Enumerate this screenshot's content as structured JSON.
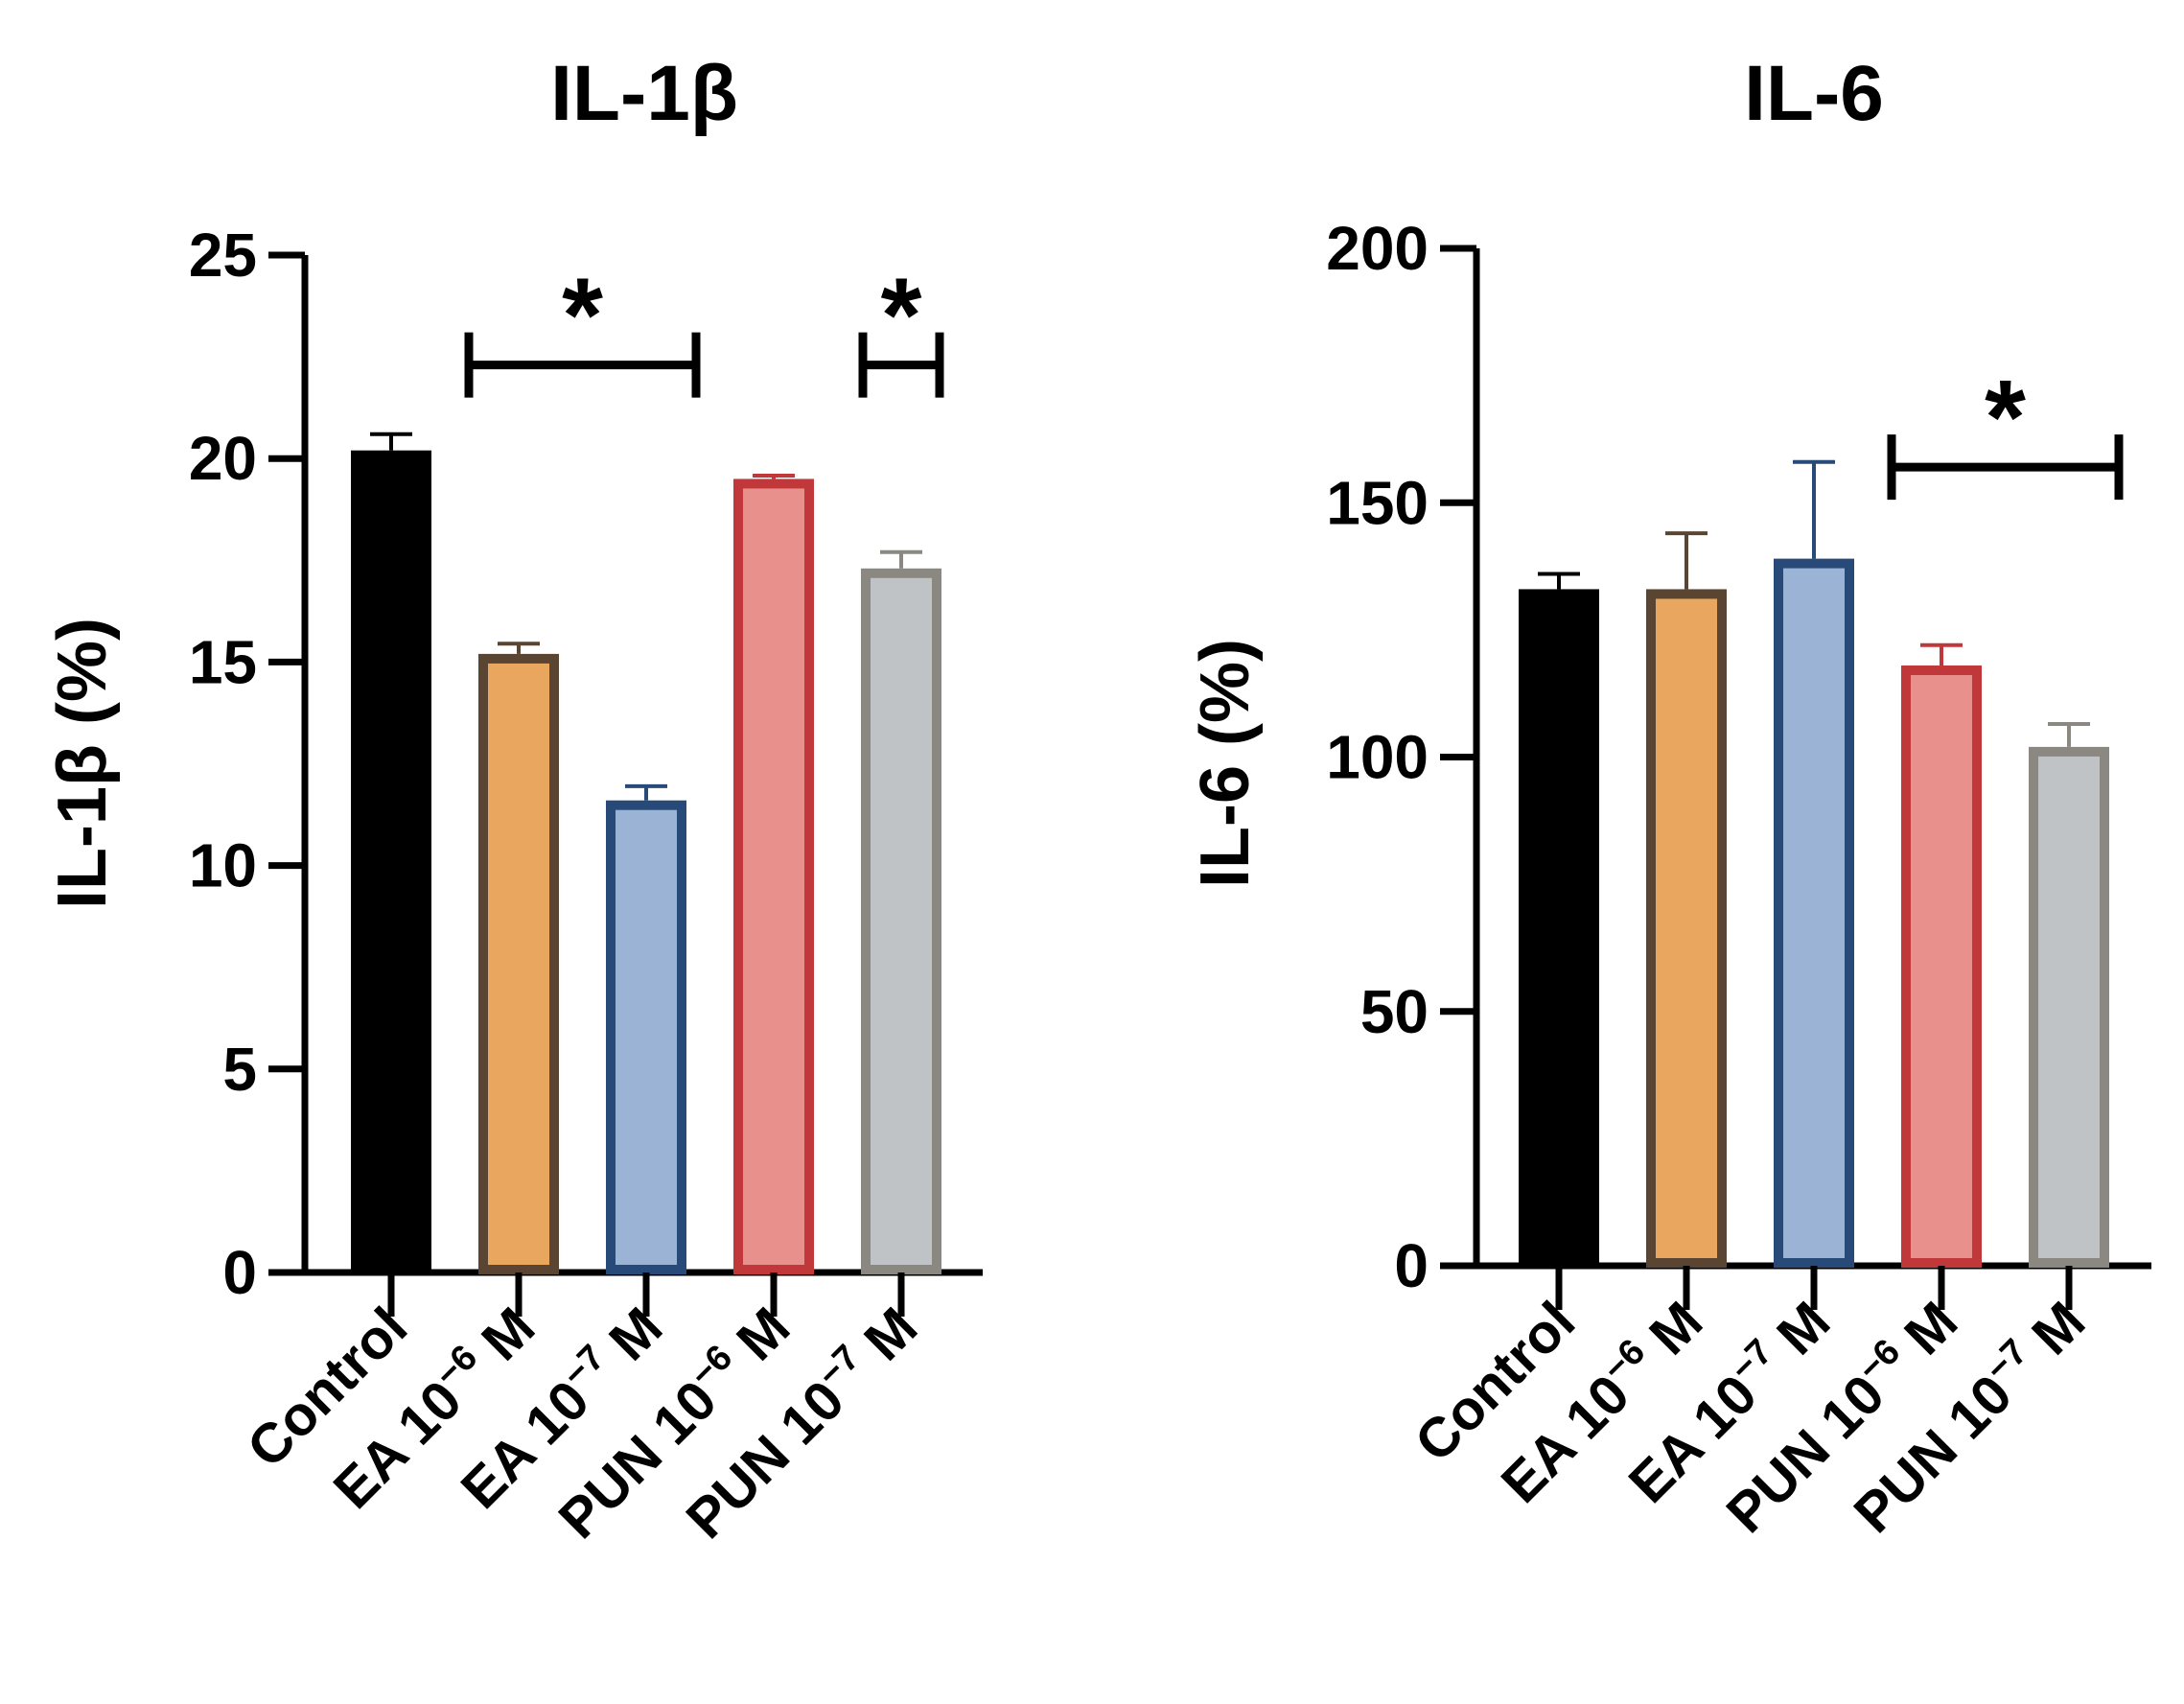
{
  "chart_data": [
    {
      "type": "bar",
      "title": "IL-1β",
      "ylabel": "IL-1β (%)",
      "xlabel": "",
      "ylim": [
        0,
        25
      ],
      "yticks": [
        0,
        5,
        10,
        15,
        20,
        25
      ],
      "categories": [
        {
          "base": "Control",
          "exp": ""
        },
        {
          "base": "EA 10",
          "exp": "−6",
          "unit": " M"
        },
        {
          "base": "EA 10",
          "exp": "−7",
          "unit": " M"
        },
        {
          "base": "PUN 10",
          "exp": "−6",
          "unit": " M"
        },
        {
          "base": "PUN 10",
          "exp": "−7",
          "unit": " M"
        }
      ],
      "values": [
        20.2,
        15.2,
        11.6,
        19.5,
        17.3
      ],
      "errors": [
        0.4,
        0.25,
        0.35,
        0.08,
        0.4
      ],
      "significance": [
        {
          "from": 1,
          "to": 2,
          "label": "*",
          "y": 22.3
        },
        {
          "from": 4,
          "to": 4,
          "label": "*",
          "y": 22.3
        }
      ]
    },
    {
      "type": "bar",
      "title": "IL-6",
      "ylabel": "IL-6 (%)",
      "xlabel": "",
      "ylim": [
        0,
        200
      ],
      "yticks": [
        0,
        50,
        100,
        150,
        200
      ],
      "categories": [
        {
          "base": "Control",
          "exp": ""
        },
        {
          "base": "EA 10",
          "exp": "−6",
          "unit": " M"
        },
        {
          "base": "EA 10",
          "exp": "−7",
          "unit": " M"
        },
        {
          "base": "PUN 10",
          "exp": "−6",
          "unit": " M"
        },
        {
          "base": "PUN 10",
          "exp": "−7",
          "unit": " M"
        }
      ],
      "values": [
        133,
        133,
        139,
        118,
        102
      ],
      "errors": [
        3,
        11,
        19,
        4,
        4.5
      ],
      "significance": [
        {
          "from": 3,
          "to": 4,
          "label": "*",
          "y": 157
        }
      ]
    }
  ],
  "colors": {
    "fills": [
      "#000000",
      "#e8a65e",
      "#9bb3d4",
      "#e8908c",
      "#bfc3c6"
    ],
    "strokes": [
      "#000000",
      "#5a4532",
      "#284a78",
      "#c1383a",
      "#8a8880"
    ],
    "errors": [
      "#000000",
      "#5a4532",
      "#284a78",
      "#c1383a",
      "#8a8880"
    ]
  }
}
